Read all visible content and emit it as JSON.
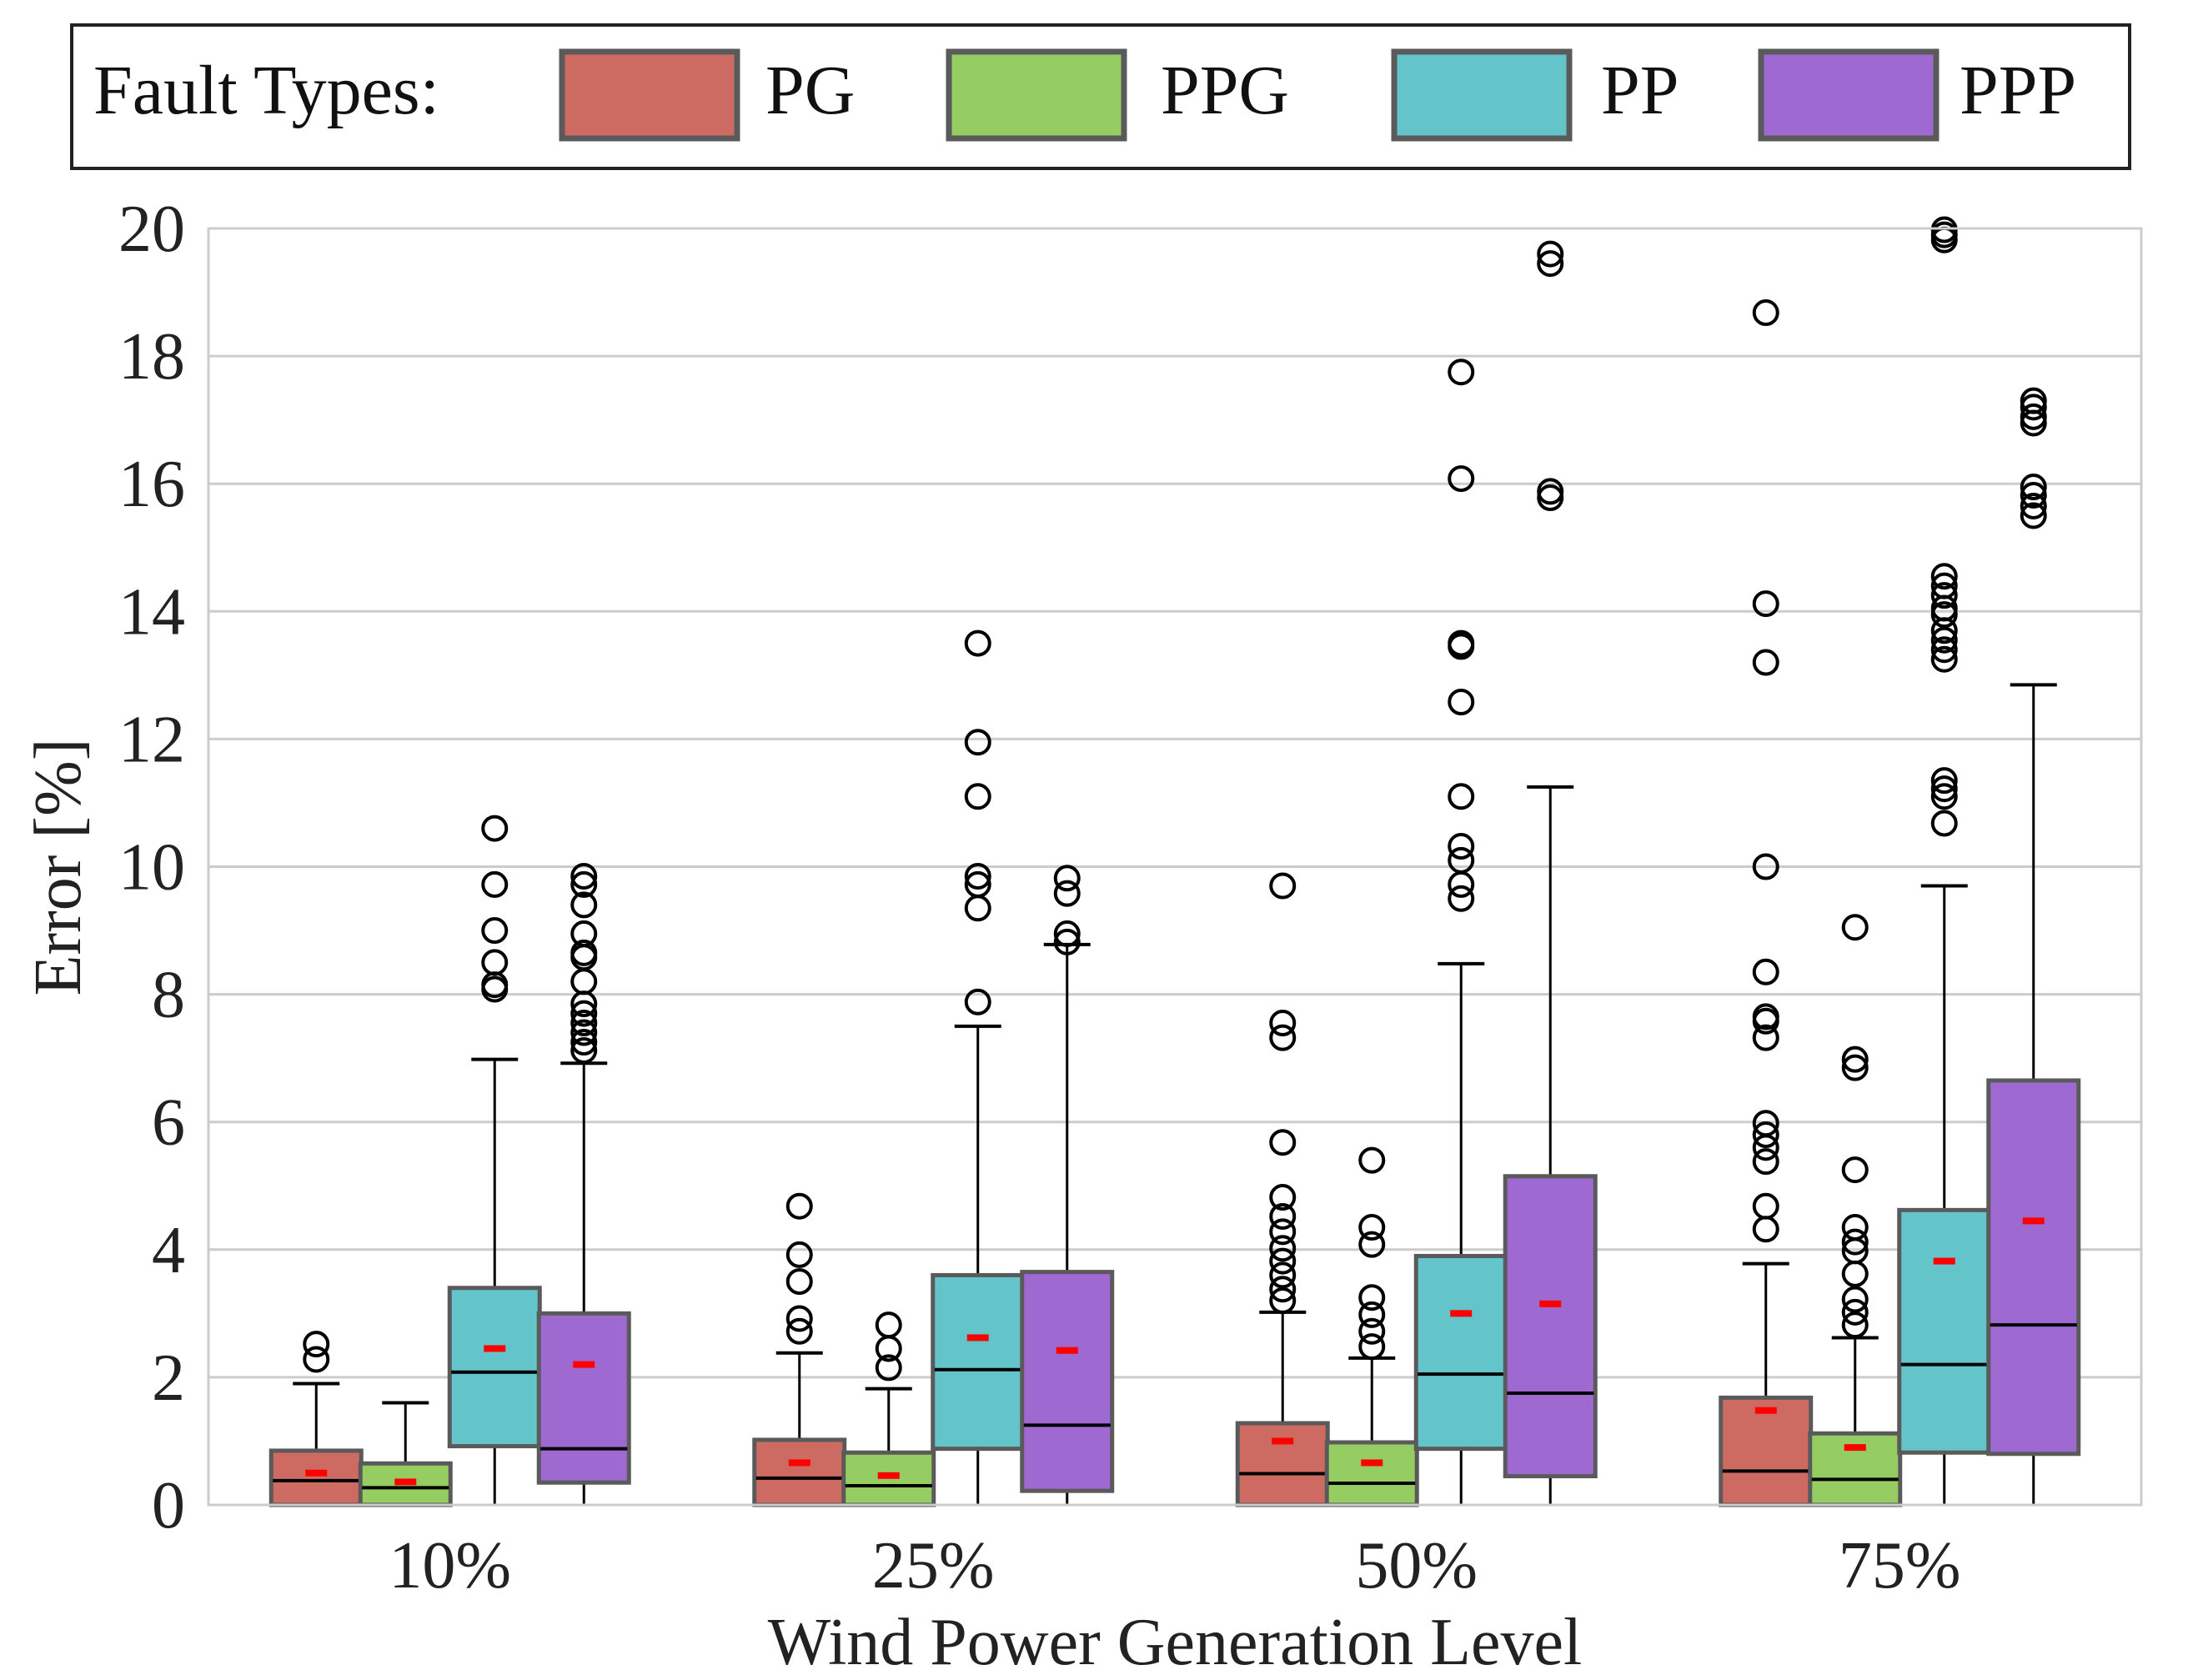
{
  "chart_data": {
    "type": "box",
    "xlabel": "Wind Power Generation Level",
    "ylabel": "Error [%]",
    "ylim": [
      0,
      20
    ],
    "yticks": [
      0,
      2,
      4,
      6,
      8,
      10,
      12,
      14,
      16,
      18,
      20
    ],
    "grid": true,
    "legend": {
      "title": "Fault Types:",
      "placement": "top"
    },
    "categories": [
      "10%",
      "25%",
      "50%",
      "75%"
    ],
    "colors": {
      "PG": "#cd6b63",
      "PPG": "#95cd63",
      "PP": "#63c4c9",
      "PPP": "#9e69d1",
      "mean_marker": "#ff0000",
      "box_edge": "#5a5a5a",
      "grid": "#cccccc"
    },
    "series": [
      {
        "name": "PG",
        "boxes": [
          {
            "lower_whisker": 0,
            "q1": 0,
            "median": 0.38,
            "q3": 0.85,
            "upper_whisker": 1.9,
            "mean": 0.5,
            "outliers": [
              2.28,
              2.52
            ]
          },
          {
            "lower_whisker": 0,
            "q1": 0,
            "median": 0.42,
            "q3": 1.02,
            "upper_whisker": 2.38,
            "mean": 0.66,
            "outliers": [
              2.72,
              2.92,
              3.5,
              3.92,
              4.68
            ]
          },
          {
            "lower_whisker": 0,
            "q1": 0,
            "median": 0.49,
            "q3": 1.28,
            "upper_whisker": 3.02,
            "mean": 1.0,
            "outliers": [
              3.2,
              3.38,
              3.6,
              3.82,
              4.02,
              4.28,
              4.52,
              4.82,
              5.68,
              7.32,
              7.55,
              9.7
            ]
          },
          {
            "lower_whisker": 0,
            "q1": 0,
            "median": 0.53,
            "q3": 1.68,
            "upper_whisker": 3.78,
            "mean": 1.48,
            "outliers": [
              4.32,
              4.68,
              5.38,
              5.6,
              5.8,
              5.98,
              7.32,
              7.58,
              7.65,
              8.35,
              10.0,
              13.2,
              14.12,
              18.68
            ]
          }
        ]
      },
      {
        "name": "PPG",
        "boxes": [
          {
            "lower_whisker": 0,
            "q1": 0,
            "median": 0.27,
            "q3": 0.65,
            "upper_whisker": 1.6,
            "mean": 0.36,
            "outliers": []
          },
          {
            "lower_whisker": 0,
            "q1": 0,
            "median": 0.3,
            "q3": 0.82,
            "upper_whisker": 1.82,
            "mean": 0.46,
            "outliers": [
              2.15,
              2.45,
              2.82
            ]
          },
          {
            "lower_whisker": 0,
            "q1": 0,
            "median": 0.34,
            "q3": 0.98,
            "upper_whisker": 2.3,
            "mean": 0.66,
            "outliers": [
              2.48,
              2.72,
              2.98,
              3.25,
              4.08,
              4.35,
              5.4
            ]
          },
          {
            "lower_whisker": 0,
            "q1": 0,
            "median": 0.4,
            "q3": 1.12,
            "upper_whisker": 2.62,
            "mean": 0.9,
            "outliers": [
              2.82,
              3.02,
              3.22,
              3.62,
              3.98,
              4.12,
              4.35,
              5.25,
              6.85,
              6.98,
              9.05
            ]
          }
        ]
      },
      {
        "name": "PP",
        "boxes": [
          {
            "lower_whisker": 0,
            "q1": 0.92,
            "median": 2.08,
            "q3": 3.4,
            "upper_whisker": 6.98,
            "mean": 2.45,
            "outliers": [
              8.08,
              8.15,
              8.5,
              9.0,
              9.72,
              10.6
            ]
          },
          {
            "lower_whisker": 0,
            "q1": 0.88,
            "median": 2.12,
            "q3": 3.6,
            "upper_whisker": 7.5,
            "mean": 2.62,
            "outliers": [
              7.88,
              9.35,
              9.72,
              9.85,
              11.1,
              11.95,
              13.5
            ]
          },
          {
            "lower_whisker": 0,
            "q1": 0.88,
            "median": 2.05,
            "q3": 3.9,
            "upper_whisker": 8.48,
            "mean": 3.0,
            "outliers": [
              9.5,
              9.72,
              10.1,
              10.32,
              11.1,
              12.58,
              13.45,
              13.5,
              16.08,
              17.75
            ]
          },
          {
            "lower_whisker": 0,
            "q1": 0.82,
            "median": 2.2,
            "q3": 4.62,
            "upper_whisker": 9.7,
            "mean": 3.82,
            "outliers": [
              10.68,
              11.1,
              11.22,
              11.35,
              13.25,
              13.4,
              13.55,
              13.7,
              13.95,
              14.05,
              14.25,
              14.4,
              14.55,
              19.82,
              19.9,
              19.98
            ]
          }
        ]
      },
      {
        "name": "PPP",
        "boxes": [
          {
            "lower_whisker": 0,
            "q1": 0.35,
            "median": 0.88,
            "q3": 3.0,
            "upper_whisker": 6.92,
            "mean": 2.2,
            "outliers": [
              7.12,
              7.25,
              7.4,
              7.55,
              7.7,
              7.85,
              8.2,
              8.58,
              8.65,
              8.95,
              9.4,
              9.72,
              9.85
            ]
          },
          {
            "lower_whisker": 0,
            "q1": 0.22,
            "median": 1.25,
            "q3": 3.65,
            "upper_whisker": 8.78,
            "mean": 2.42,
            "outliers": [
              8.82,
              8.95,
              9.58,
              9.82
            ]
          },
          {
            "lower_whisker": 0,
            "q1": 0.45,
            "median": 1.75,
            "q3": 5.15,
            "upper_whisker": 11.25,
            "mean": 3.15,
            "outliers": [
              15.78,
              15.88,
              19.45,
              19.6
            ]
          },
          {
            "lower_whisker": 0,
            "q1": 0.8,
            "median": 2.82,
            "q3": 6.65,
            "upper_whisker": 12.85,
            "mean": 4.45,
            "outliers": [
              15.5,
              15.65,
              15.82,
              15.95,
              16.95,
              17.05,
              17.2,
              17.3
            ]
          }
        ]
      }
    ]
  }
}
